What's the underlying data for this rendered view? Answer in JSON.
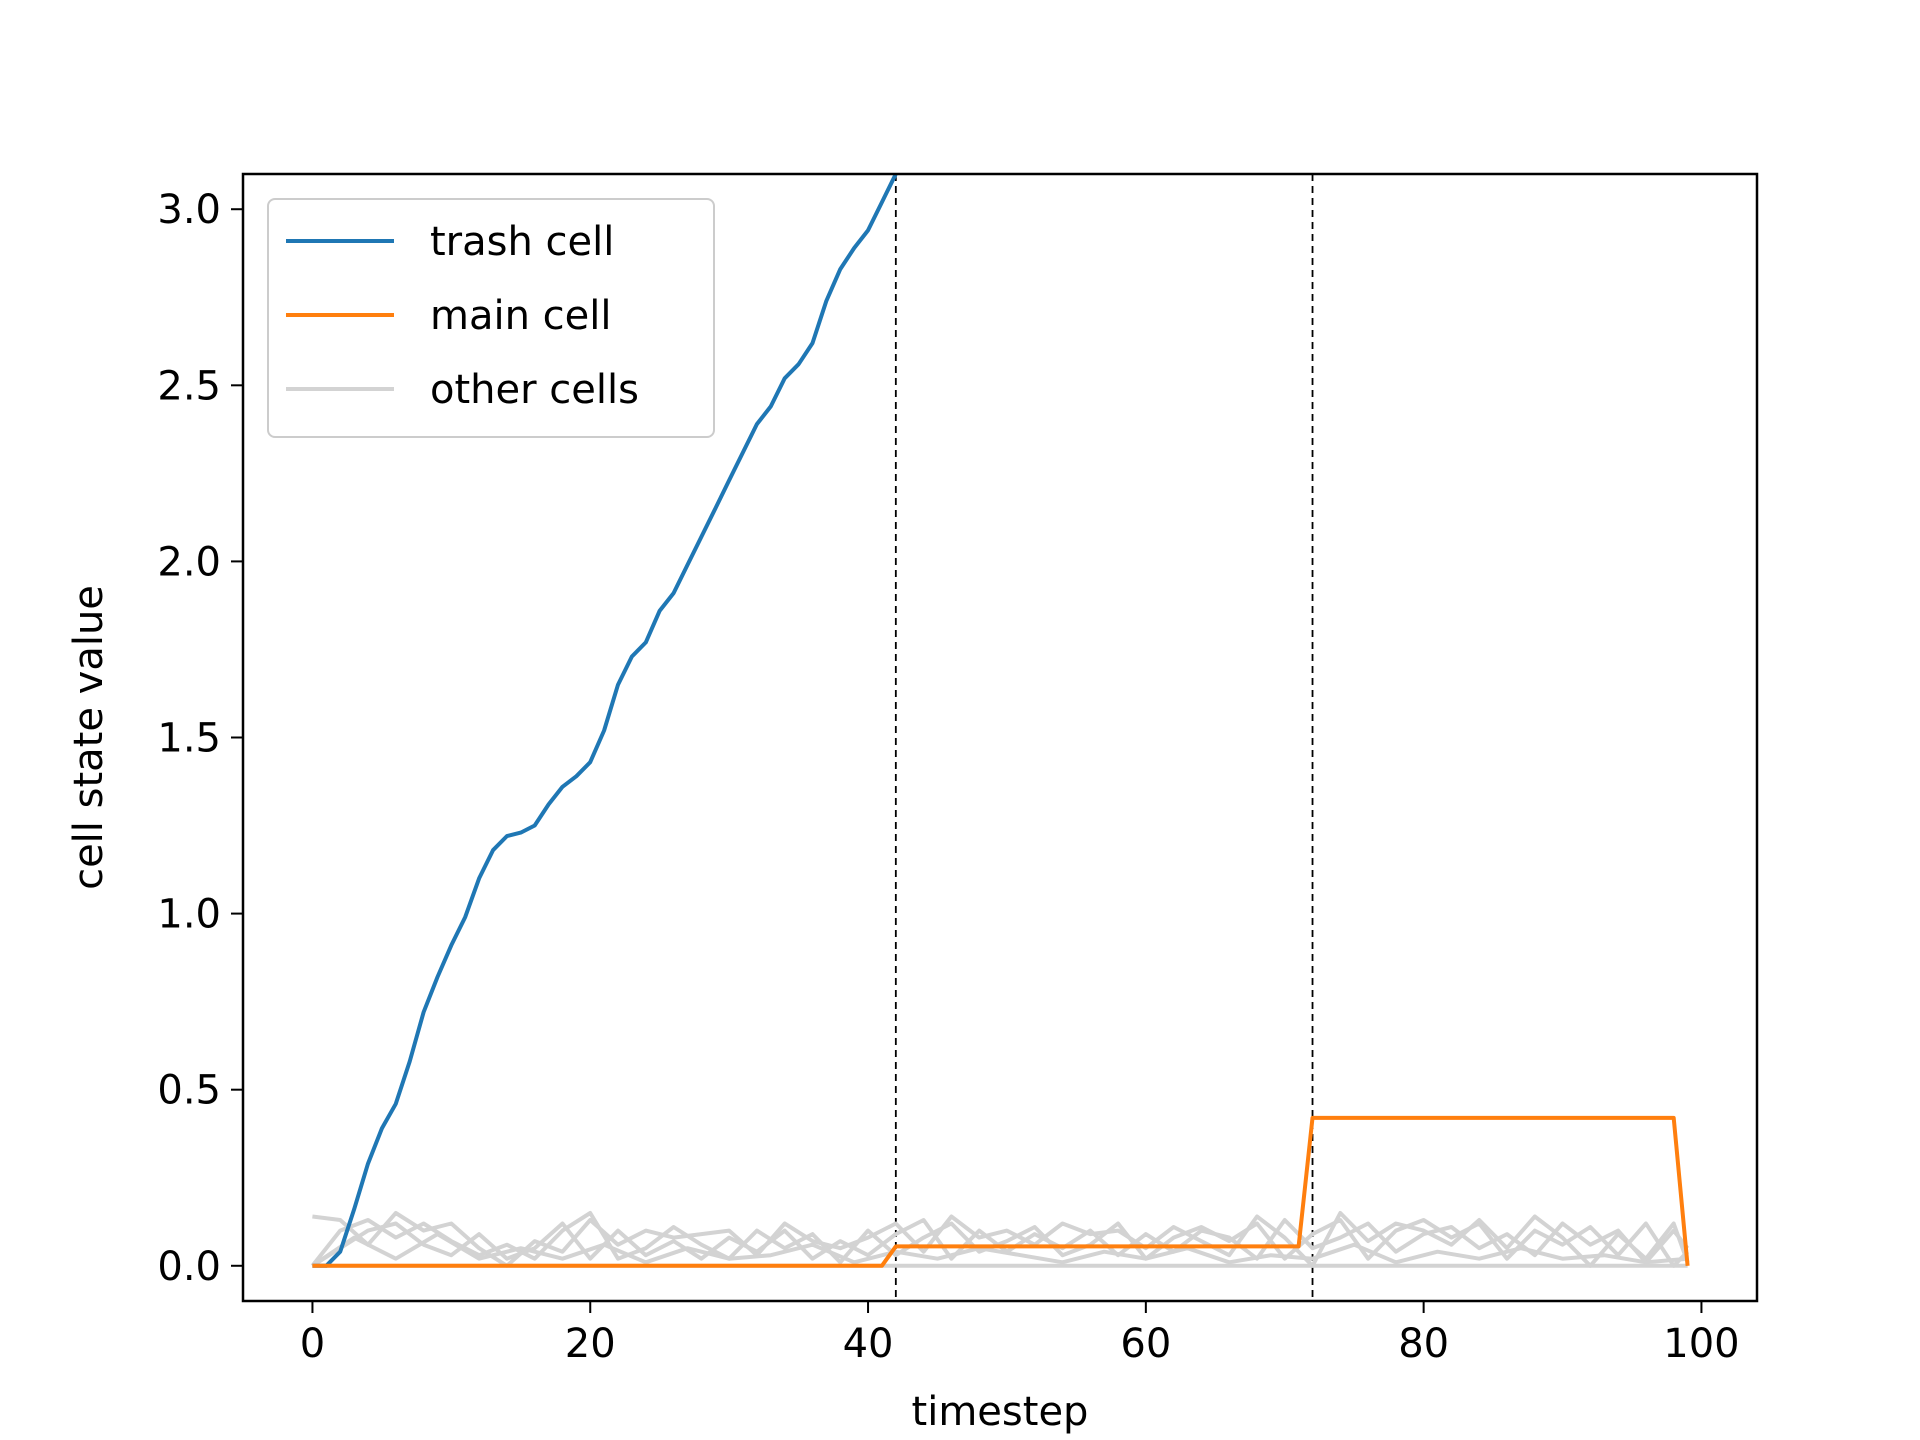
{
  "chart_data": {
    "type": "line",
    "xlabel": "timestep",
    "ylabel": "cell state value",
    "xlim": [
      -5,
      104
    ],
    "ylim": [
      -0.1,
      3.1
    ],
    "xticks": [
      0,
      20,
      40,
      60,
      80,
      100
    ],
    "yticks": [
      0.0,
      0.5,
      1.0,
      1.5,
      2.0,
      2.5,
      3.0
    ],
    "xtick_labels": [
      "0",
      "20",
      "40",
      "60",
      "80",
      "100"
    ],
    "ytick_labels": [
      "0.0",
      "0.5",
      "1.0",
      "1.5",
      "2.0",
      "2.5",
      "3.0"
    ],
    "grid": false,
    "legend_position": "upper-left",
    "vlines": [
      42,
      72
    ],
    "legend": [
      {
        "label": "trash cell",
        "color": "#1f77b4"
      },
      {
        "label": "main cell",
        "color": "#ff7f0e"
      },
      {
        "label": "other cells",
        "color": "#d3d3d3"
      }
    ],
    "series": [
      {
        "name": "trash cell",
        "color": "#1f77b4",
        "x": [
          0,
          1,
          2,
          3,
          4,
          5,
          6,
          7,
          8,
          9,
          10,
          11,
          12,
          13,
          14,
          15,
          16,
          17,
          18,
          19,
          20,
          21,
          22,
          23,
          24,
          25,
          26,
          27,
          28,
          29,
          30,
          31,
          32,
          33,
          34,
          35,
          36,
          37,
          38,
          39,
          40,
          41,
          42
        ],
        "y": [
          0.0,
          0.0,
          0.04,
          0.16,
          0.29,
          0.39,
          0.46,
          0.58,
          0.72,
          0.82,
          0.91,
          0.99,
          1.1,
          1.18,
          1.22,
          1.23,
          1.25,
          1.31,
          1.36,
          1.39,
          1.43,
          1.52,
          1.65,
          1.73,
          1.77,
          1.86,
          1.91,
          1.99,
          2.07,
          2.15,
          2.23,
          2.31,
          2.39,
          2.44,
          2.52,
          2.56,
          2.62,
          2.74,
          2.83,
          2.89,
          2.94,
          3.02,
          3.1
        ]
      },
      {
        "name": "main cell",
        "color": "#ff7f0e",
        "x": [
          0,
          41,
          42,
          71,
          72,
          98,
          99
        ],
        "y": [
          0.0,
          0.0,
          0.055,
          0.055,
          0.42,
          0.42,
          0.0
        ]
      }
    ],
    "other_cells": {
      "name": "other cells",
      "color": "#d3d3d3",
      "series": [
        {
          "x": [
            0,
            2,
            4,
            6,
            8,
            10,
            12,
            14,
            16,
            18,
            20,
            22,
            24,
            26,
            28,
            30,
            32,
            34,
            36,
            38,
            40,
            42,
            44,
            46,
            48,
            50,
            52,
            54,
            56,
            58,
            60,
            62,
            64,
            66,
            68,
            70,
            72,
            74,
            76,
            78,
            80,
            82,
            84,
            86,
            88,
            90,
            92,
            94,
            96,
            98,
            99
          ],
          "y": [
            0.14,
            0.13,
            0.06,
            0.15,
            0.1,
            0.12,
            0.05,
            0.0,
            0.07,
            0.04,
            0.13,
            0.06,
            0.1,
            0.08,
            0.09,
            0.1,
            0.03,
            0.12,
            0.07,
            0.05,
            0.08,
            0.12,
            0.04,
            0.14,
            0.08,
            0.1,
            0.06,
            0.12,
            0.09,
            0.1,
            0.05,
            0.11,
            0.07,
            0.03,
            0.14,
            0.08,
            0.0,
            0.15,
            0.07,
            0.12,
            0.1,
            0.06,
            0.13,
            0.05,
            0.14,
            0.08,
            0.0,
            0.09,
            0.02,
            0.12,
            0.01
          ]
        },
        {
          "x": [
            0,
            2,
            4,
            6,
            8,
            10,
            12,
            14,
            16,
            18,
            20,
            22,
            24,
            26,
            28,
            30,
            32,
            34,
            36,
            38,
            40,
            42,
            44,
            46,
            48,
            50,
            52,
            54,
            56,
            58,
            60,
            62,
            64,
            66,
            68,
            70,
            72,
            74,
            76,
            78,
            80,
            82,
            84,
            86,
            88,
            90,
            92,
            94,
            96,
            98,
            99
          ],
          "y": [
            0.0,
            0.1,
            0.13,
            0.08,
            0.12,
            0.07,
            0.03,
            0.06,
            0.02,
            0.1,
            0.15,
            0.02,
            0.05,
            0.11,
            0.06,
            0.02,
            0.1,
            0.05,
            0.09,
            0.01,
            0.1,
            0.03,
            0.08,
            0.12,
            0.04,
            0.07,
            0.11,
            0.03,
            0.06,
            0.12,
            0.02,
            0.08,
            0.11,
            0.07,
            0.12,
            0.02,
            0.09,
            0.13,
            0.02,
            0.1,
            0.13,
            0.08,
            0.12,
            0.02,
            0.1,
            0.06,
            0.11,
            0.03,
            0.12,
            0.0,
            0.04
          ]
        },
        {
          "x": [
            0,
            2,
            4,
            6,
            8,
            10,
            12,
            14,
            16,
            18,
            20,
            22,
            24,
            26,
            28,
            30,
            32,
            34,
            36,
            38,
            40,
            42,
            44,
            46,
            48,
            50,
            52,
            54,
            56,
            58,
            60,
            62,
            64,
            66,
            68,
            70,
            72,
            74,
            76,
            78,
            80,
            82,
            84,
            86,
            88,
            90,
            92,
            94,
            96,
            98,
            99
          ],
          "y": [
            0.0,
            0.05,
            0.1,
            0.12,
            0.06,
            0.03,
            0.09,
            0.02,
            0.05,
            0.12,
            0.02,
            0.1,
            0.03,
            0.07,
            0.02,
            0.08,
            0.04,
            0.1,
            0.02,
            0.07,
            0.03,
            0.09,
            0.13,
            0.02,
            0.1,
            0.04,
            0.09,
            0.05,
            0.1,
            0.03,
            0.09,
            0.04,
            0.1,
            0.08,
            0.02,
            0.13,
            0.05,
            0.08,
            0.12,
            0.04,
            0.09,
            0.11,
            0.05,
            0.09,
            0.03,
            0.12,
            0.06,
            0.1,
            0.01,
            0.1,
            0.05
          ]
        },
        {
          "x": [
            0,
            3,
            6,
            9,
            12,
            15,
            18,
            21,
            24,
            27,
            30,
            33,
            36,
            39,
            42,
            45,
            48,
            51,
            54,
            57,
            60,
            63,
            66,
            69,
            72,
            75,
            78,
            81,
            84,
            87,
            90,
            93,
            96,
            99
          ],
          "y": [
            0.0,
            0.08,
            0.02,
            0.09,
            0.02,
            0.05,
            0.02,
            0.06,
            0.01,
            0.05,
            0.02,
            0.03,
            0.06,
            0.01,
            0.04,
            0.02,
            0.05,
            0.03,
            0.01,
            0.04,
            0.02,
            0.05,
            0.01,
            0.03,
            0.02,
            0.06,
            0.01,
            0.04,
            0.02,
            0.05,
            0.02,
            0.03,
            0.01,
            0.02
          ]
        },
        {
          "x": [
            0,
            10,
            20,
            30,
            40,
            50,
            60,
            70,
            80,
            90,
            99
          ],
          "y": [
            0.0,
            0.0,
            0.0,
            0.0,
            0.0,
            0.0,
            0.0,
            0.0,
            0.0,
            0.0,
            0.0
          ]
        }
      ]
    }
  }
}
